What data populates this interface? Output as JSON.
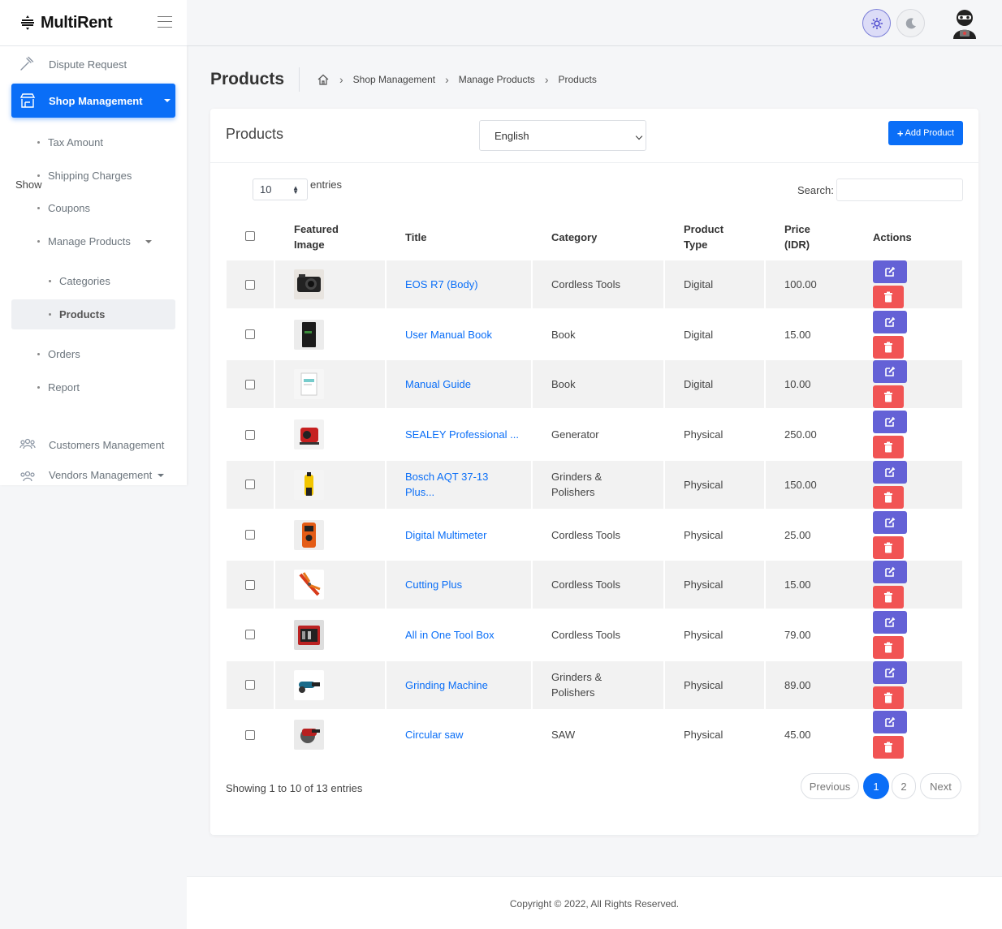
{
  "brand": {
    "name": "MultiRent"
  },
  "sidebar": {
    "top_item": {
      "label": "Dispute Request",
      "icon": "gavel-icon"
    },
    "active_item": {
      "label": "Shop Management",
      "icon": "store-icon"
    },
    "sub_items": [
      {
        "label": "Tax Amount"
      },
      {
        "label": "Shipping Charges"
      },
      {
        "label": "Coupons"
      },
      {
        "label": "Manage Products"
      }
    ],
    "manage_products_children": [
      {
        "label": "Categories"
      },
      {
        "label": "Products"
      }
    ],
    "more_sub_items": [
      {
        "label": "Orders"
      },
      {
        "label": "Report"
      }
    ],
    "customers": {
      "label": "Customers Management",
      "icon": "users-icon"
    },
    "vendors": {
      "label": "Vendors Management",
      "icon": "users-icon"
    }
  },
  "header": {
    "theme_light_icon": "gear-icon",
    "theme_dark_icon": "moon-icon",
    "accent": "#0a6ef7"
  },
  "page": {
    "title": "Products",
    "breadcrumb": [
      "Shop Management",
      "Manage Products",
      "Products"
    ]
  },
  "card": {
    "title": "Products",
    "language": "English",
    "add_button": "Add Product"
  },
  "table_controls": {
    "show_label": "Show",
    "entries_value": "10",
    "entries_label": "entries",
    "search_label": "Search:"
  },
  "table": {
    "headers": {
      "image_l1": "Featured",
      "image_l2": "Image",
      "title": "Title",
      "category": "Category",
      "type_l1": "Product",
      "type_l2": "Type",
      "price_l1": "Price",
      "price_l2": "(IDR)",
      "actions": "Actions"
    },
    "rows": [
      {
        "title": "EOS R7 (Body)",
        "title_l2": "",
        "category": "Cordless Tools",
        "category_l2": "",
        "type": "Digital",
        "price": "100.00",
        "thumb": "camera"
      },
      {
        "title": "User Manual Book",
        "title_l2": "",
        "category": "Book",
        "category_l2": "",
        "type": "Digital",
        "price": "15.00",
        "thumb": "book"
      },
      {
        "title": "Manual Guide",
        "title_l2": "",
        "category": "Book",
        "category_l2": "",
        "type": "Digital",
        "price": "10.00",
        "thumb": "guide"
      },
      {
        "title": "SEALEY Professional ...",
        "title_l2": "",
        "category": "Generator",
        "category_l2": "",
        "type": "Physical",
        "price": "250.00",
        "thumb": "generator"
      },
      {
        "title": "Bosch AQT 37-13",
        "title_l2": "Plus...",
        "category": "Grinders &",
        "category_l2": "Polishers",
        "type": "Physical",
        "price": "150.00",
        "thumb": "washer"
      },
      {
        "title": "Digital Multimeter",
        "title_l2": "",
        "category": "Cordless Tools",
        "category_l2": "",
        "type": "Physical",
        "price": "25.00",
        "thumb": "multimeter"
      },
      {
        "title": "Cutting Plus",
        "title_l2": "",
        "category": "Cordless Tools",
        "category_l2": "",
        "type": "Physical",
        "price": "15.00",
        "thumb": "pliers"
      },
      {
        "title": "All in One Tool Box",
        "title_l2": "",
        "category": "Cordless Tools",
        "category_l2": "",
        "type": "Physical",
        "price": "79.00",
        "thumb": "toolbox"
      },
      {
        "title": "Grinding Machine",
        "title_l2": "",
        "category": "Grinders &",
        "category_l2": "Polishers",
        "type": "Physical",
        "price": "89.00",
        "thumb": "grinder"
      },
      {
        "title": "Circular saw",
        "title_l2": "",
        "category": "SAW",
        "category_l2": "",
        "type": "Physical",
        "price": "45.00",
        "thumb": "saw"
      }
    ]
  },
  "pagination": {
    "showing": "Showing 1 to 10 of 13 entries",
    "previous": "Previous",
    "pages": [
      "1",
      "2"
    ],
    "next": "Next"
  },
  "footer": {
    "copyright": "Copyright © 2022, All Rights Reserved."
  }
}
